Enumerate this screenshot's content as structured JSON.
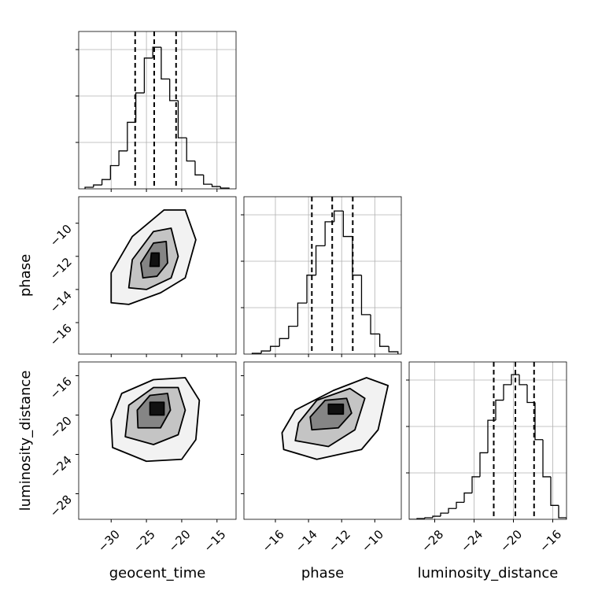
{
  "chart_data": [
    {
      "type": "histogram",
      "grid": true,
      "xticklabels": false,
      "bins": [
        -33.7,
        -32.5,
        -31.3,
        -30.1,
        -28.9,
        -27.7,
        -26.5,
        -25.3,
        -24.1,
        -22.9,
        -21.7,
        -20.5,
        -19.3,
        -18.1,
        -16.9,
        -15.7,
        -14.5,
        -13.3
      ],
      "values": [
        10,
        25,
        60,
        150,
        245,
        430,
        620,
        845,
        915,
        710,
        570,
        330,
        180,
        90,
        30,
        15,
        5
      ],
      "quantiles": [
        -26.6,
        -23.9,
        -20.8
      ],
      "xlim": [
        -34.6,
        -12.3
      ],
      "xticks": [
        -30,
        -25,
        -20,
        -15
      ],
      "ylim": [
        0,
        1017
      ],
      "yticks": [
        300,
        600,
        900
      ]
    },
    {
      "type": "contour",
      "grid": false,
      "xticklabels": false,
      "ylabel": "phase",
      "xlim": [
        -34.6,
        -12.3
      ],
      "xticks": [
        -30,
        -25,
        -20,
        -15
      ],
      "ylim": [
        -17.9,
        -8.4
      ],
      "yticks": [
        {
          "value": -10,
          "label": "−10"
        },
        {
          "value": -12,
          "label": "−12"
        },
        {
          "value": -14,
          "label": "−14"
        },
        {
          "value": -16,
          "label": "−16"
        }
      ],
      "contours": [
        {
          "x": [
            -30.0,
            -27.5,
            -23.0,
            -19.5,
            -18.0,
            -19.5,
            -22.5,
            -27.0,
            -30.0
          ],
          "y": [
            -14.8,
            -14.9,
            -14.2,
            -13.3,
            -11.0,
            -9.2,
            -9.2,
            -10.8,
            -13.0
          ]
        },
        {
          "x": [
            -27.5,
            -25,
            -21.5,
            -20.5,
            -21.5,
            -24,
            -27
          ],
          "y": [
            -13.9,
            -14,
            -13.3,
            -12,
            -10.3,
            -10.5,
            -12.2
          ]
        },
        {
          "x": [
            -25.5,
            -23.5,
            -22,
            -22.2,
            -24,
            -25.8
          ],
          "y": [
            -13.3,
            -13.2,
            -12.4,
            -11.1,
            -11.2,
            -12.4
          ]
        },
        {
          "x": [
            -24.5,
            -23.2,
            -23.2,
            -24.3
          ],
          "y": [
            -12.6,
            -12.6,
            -11.8,
            -11.8
          ]
        }
      ]
    },
    {
      "type": "histogram",
      "grid": true,
      "xticklabels": false,
      "bins": [
        -17.4,
        -16.85,
        -16.3,
        -15.75,
        -15.2,
        -14.65,
        -14.1,
        -13.55,
        -13.0,
        -12.45,
        -11.9,
        -11.35,
        -10.8,
        -10.25,
        -9.7,
        -9.15,
        -8.6
      ],
      "values": [
        5,
        20,
        50,
        100,
        180,
        330,
        510,
        700,
        855,
        925,
        760,
        510,
        255,
        130,
        50,
        15
      ],
      "quantiles": [
        -13.8,
        -12.57,
        -11.33
      ],
      "xlim": [
        -17.9,
        -8.4
      ],
      "xticks": [
        -16,
        -14,
        -12,
        -10
      ],
      "ylim": [
        0,
        1017
      ],
      "yticks": [
        300,
        600,
        900
      ]
    },
    {
      "type": "contour",
      "grid": false,
      "xticklabels": true,
      "xlabel": "geocent_time",
      "ylabel": "luminosity_distance",
      "xlim": [
        -34.6,
        -12.3
      ],
      "xticks": [
        {
          "value": -30,
          "label": "−30"
        },
        {
          "value": -25,
          "label": "−25"
        },
        {
          "value": -20,
          "label": "−20"
        },
        {
          "value": -15,
          "label": "−15"
        }
      ],
      "ylim": [
        -30.6,
        -14.6
      ],
      "yticks": [
        {
          "value": -16,
          "label": "−16"
        },
        {
          "value": -20,
          "label": "−20"
        },
        {
          "value": -24,
          "label": "−24"
        },
        {
          "value": -28,
          "label": "−28"
        }
      ],
      "contours": [
        {
          "x": [
            -29.8,
            -25,
            -20,
            -18,
            -17.5,
            -19.5,
            -24,
            -28.5,
            -30
          ],
          "y": [
            -23.3,
            -24.7,
            -24.5,
            -22.5,
            -18.5,
            -16.2,
            -16.4,
            -17.8,
            -20.5
          ]
        },
        {
          "x": [
            -28,
            -24,
            -20.5,
            -19.5,
            -20.5,
            -24,
            -27.5
          ],
          "y": [
            -22.2,
            -23.0,
            -22.0,
            -19.5,
            -17.2,
            -17.2,
            -19
          ]
        },
        {
          "x": [
            -26.2,
            -23,
            -21.6,
            -22,
            -24.5,
            -26.3
          ],
          "y": [
            -21.3,
            -21.3,
            -19.5,
            -17.8,
            -18,
            -19.5
          ]
        },
        {
          "x": [
            -24.5,
            -22.5,
            -22.5,
            -24.5
          ],
          "y": [
            -20,
            -20,
            -18.7,
            -18.7
          ]
        }
      ]
    },
    {
      "type": "contour",
      "grid": false,
      "xticklabels": true,
      "xlabel": "phase",
      "xlim": [
        -17.9,
        -8.4
      ],
      "xticks": [
        {
          "value": -16,
          "label": "−16"
        },
        {
          "value": -14,
          "label": "−14"
        },
        {
          "value": -12,
          "label": "−12"
        },
        {
          "value": -10,
          "label": "−10"
        }
      ],
      "ylim": [
        -30.6,
        -14.6
      ],
      "yticks": [
        -16,
        -20,
        -24,
        -28
      ],
      "contours": [
        {
          "x": [
            -15.5,
            -13.5,
            -10.8,
            -9.8,
            -9.2,
            -10.5,
            -12.5,
            -14.8,
            -15.6
          ],
          "y": [
            -23.5,
            -24.5,
            -23.5,
            -21.5,
            -17.0,
            -16.2,
            -17.5,
            -19.5,
            -21.8
          ]
        },
        {
          "x": [
            -14.8,
            -12.8,
            -11.2,
            -10.6,
            -11.5,
            -13.5,
            -14.6
          ],
          "y": [
            -22.6,
            -23.2,
            -21.5,
            -18.3,
            -17.3,
            -18.5,
            -20.8
          ]
        },
        {
          "x": [
            -13.8,
            -12.2,
            -11.4,
            -11.7,
            -13,
            -13.9
          ],
          "y": [
            -21.5,
            -21.3,
            -19.8,
            -18.3,
            -18.5,
            -20.2
          ]
        },
        {
          "x": [
            -12.8,
            -11.9,
            -11.9,
            -12.8
          ],
          "y": [
            -19.9,
            -19.9,
            -18.9,
            -18.9
          ]
        }
      ]
    },
    {
      "type": "histogram",
      "grid": true,
      "xticklabels": true,
      "xlabel": "luminosity_distance",
      "bins": [
        -30.6,
        -29.8,
        -29.0,
        -28.2,
        -27.4,
        -26.6,
        -25.8,
        -25.0,
        -24.2,
        -23.4,
        -22.6,
        -21.8,
        -21.0,
        -20.2,
        -19.4,
        -18.6,
        -17.8,
        -17.0,
        -16.2,
        -15.4,
        -14.6
      ],
      "values": [
        0,
        5,
        10,
        20,
        40,
        70,
        110,
        170,
        275,
        430,
        640,
        770,
        870,
        935,
        870,
        755,
        515,
        275,
        90,
        10
      ],
      "quantiles": [
        -22.0,
        -19.8,
        -17.9
      ],
      "xlim": [
        -30.6,
        -14.6
      ],
      "xticks": [
        {
          "value": -28,
          "label": "−28"
        },
        {
          "value": -24,
          "label": "−24"
        },
        {
          "value": -20,
          "label": "−20"
        },
        {
          "value": -16,
          "label": "−16"
        }
      ],
      "ylim": [
        0,
        1017
      ],
      "yticks": [
        300,
        600,
        900
      ]
    }
  ]
}
